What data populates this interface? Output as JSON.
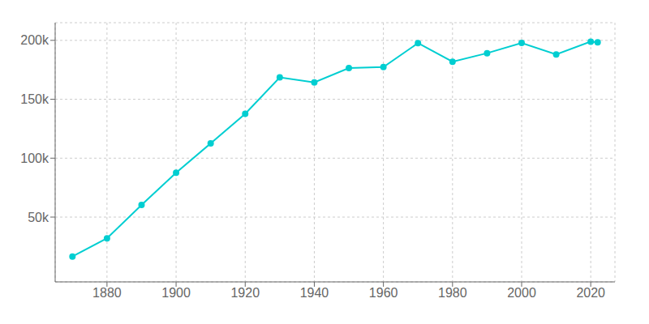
{
  "chart_data": {
    "type": "line",
    "x": [
      1870,
      1880,
      1890,
      1900,
      1910,
      1920,
      1930,
      1940,
      1950,
      1960,
      1970,
      1980,
      1990,
      2000,
      2010,
      2020,
      2022
    ],
    "values": [
      16507,
      32016,
      60278,
      87565,
      112571,
      137634,
      168592,
      164292,
      176515,
      177313,
      197649,
      181843,
      189126,
      197800,
      188040,
      198917,
      198294
    ],
    "color": "#00CED1",
    "marker": "circle",
    "xlim": [
      1865,
      2027
    ],
    "xticks": [
      1880,
      1900,
      1920,
      1940,
      1960,
      1980,
      2000,
      2020
    ],
    "ylim": [
      -5000,
      215000
    ],
    "yticks": [
      {
        "value": 50000,
        "label": "50k"
      },
      {
        "value": 100000,
        "label": "100k"
      },
      {
        "value": 150000,
        "label": "150k"
      },
      {
        "value": 200000,
        "label": "200k"
      }
    ],
    "grid": true
  }
}
